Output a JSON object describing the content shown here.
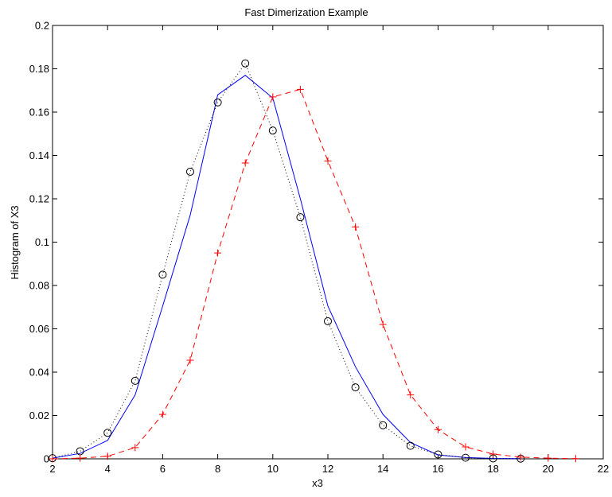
{
  "chart_data": {
    "type": "line",
    "title": "Fast Dimerization Example",
    "xlabel": "x3",
    "ylabel": "Histogram of X3",
    "xlim": [
      2,
      22
    ],
    "ylim": [
      0,
      0.2
    ],
    "x_ticks": [
      2,
      4,
      6,
      8,
      10,
      12,
      14,
      16,
      18,
      20,
      22
    ],
    "y_ticks": [
      0,
      0.02,
      0.04,
      0.06,
      0.08,
      0.1,
      0.12,
      0.14,
      0.16,
      0.18,
      0.2
    ],
    "x_tick_labels": [
      "2",
      "4",
      "6",
      "8",
      "10",
      "12",
      "14",
      "16",
      "18",
      "20",
      "22"
    ],
    "y_tick_labels": [
      "0",
      "0.02",
      "0.04",
      "0.06",
      "0.08",
      "0.1",
      "0.12",
      "0.14",
      "0.16",
      "0.18",
      "0.2"
    ],
    "grid": false,
    "legend": "none",
    "series": [
      {
        "style": "solid",
        "color": "#0000ff",
        "marker": "none",
        "x": [
          2,
          3,
          4,
          5,
          6,
          7,
          8,
          9,
          10,
          11,
          12,
          13,
          14,
          15,
          16,
          17,
          18,
          19
        ],
        "y": [
          0.0003,
          0.0025,
          0.0085,
          0.0295,
          0.0705,
          0.1125,
          0.168,
          0.177,
          0.1665,
          0.12,
          0.0705,
          0.0425,
          0.0205,
          0.0075,
          0.0018,
          0.0006,
          0.0002,
          0.0001
        ]
      },
      {
        "style": "dotted",
        "color": "#000000",
        "marker": "circle",
        "x": [
          2,
          3,
          4,
          5,
          6,
          7,
          8,
          9,
          10,
          11,
          12,
          13,
          14,
          15,
          16,
          17,
          18,
          19
        ],
        "y": [
          0.0003,
          0.0035,
          0.012,
          0.036,
          0.085,
          0.1325,
          0.1645,
          0.1825,
          0.1515,
          0.1115,
          0.0635,
          0.033,
          0.0155,
          0.006,
          0.002,
          0.0005,
          0.0002,
          0.0001
        ]
      },
      {
        "style": "dashed",
        "color": "#ff0000",
        "marker": "plus",
        "x": [
          2,
          3,
          4,
          5,
          6,
          7,
          8,
          9,
          10,
          11,
          12,
          13,
          14,
          15,
          16,
          17,
          18,
          19,
          20,
          21
        ],
        "y": [
          0.0,
          0.0003,
          0.0012,
          0.0052,
          0.0205,
          0.0455,
          0.095,
          0.1365,
          0.167,
          0.1705,
          0.1375,
          0.107,
          0.062,
          0.0295,
          0.0135,
          0.0055,
          0.0022,
          0.0008,
          0.0003,
          0.0001
        ]
      }
    ]
  }
}
